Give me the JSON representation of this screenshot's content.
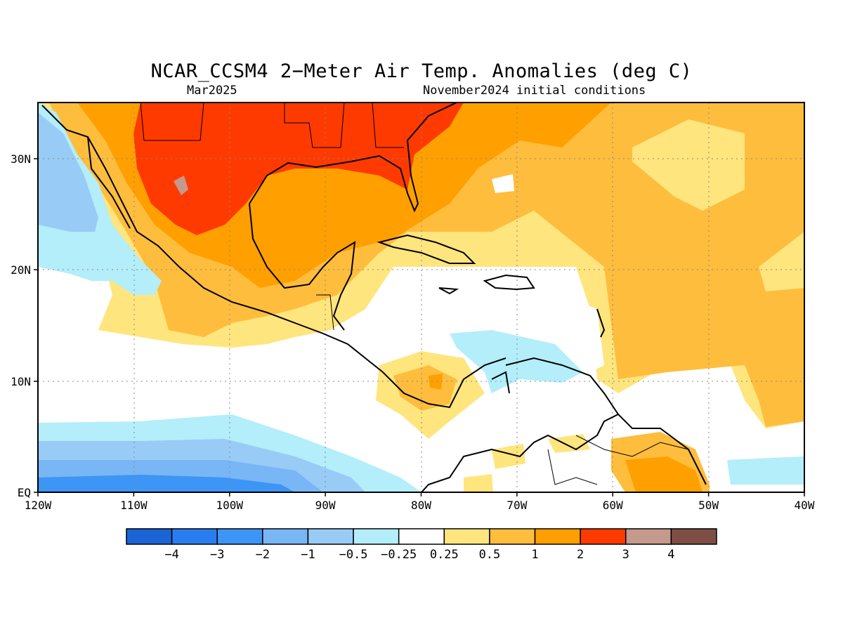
{
  "title": "NCAR_CCSM4 2−Meter Air Temp. Anomalies (deg C)",
  "subtitle_left": "Mar2025",
  "subtitle_right": "November2024 initial conditions",
  "axes": {
    "lon_labels": [
      "120W",
      "110W",
      "100W",
      "90W",
      "80W",
      "70W",
      "60W",
      "50W",
      "40W"
    ],
    "lat_labels": [
      "EQ",
      "10N",
      "20N",
      "30N"
    ]
  },
  "colorbar": {
    "colors": [
      "#1a64d6",
      "#2a7df0",
      "#3d95f5",
      "#78b6f5",
      "#99cbf7",
      "#b3eefa",
      "#ffffff",
      "#ffe57d",
      "#ffbd3d",
      "#ff9f00",
      "#ff3a00",
      "#c49a8c",
      "#7d4f44"
    ],
    "labels": [
      "−4",
      "−3",
      "−2",
      "−1",
      "−0.5",
      "−0.25",
      "0.25",
      "0.5",
      "1",
      "2",
      "3",
      "4"
    ]
  },
  "map_colors": {
    "cool_2": "#3d95f5",
    "cool_1": "#78b6f5",
    "cool_05": "#99cbf7",
    "cool_025": "#b3eefa",
    "warm_025": "#ffe57d",
    "warm_05": "#ffbd3d",
    "warm_1": "#ff9f00",
    "warm_2": "#ff3a00",
    "warm_3": "#c49a8c"
  }
}
